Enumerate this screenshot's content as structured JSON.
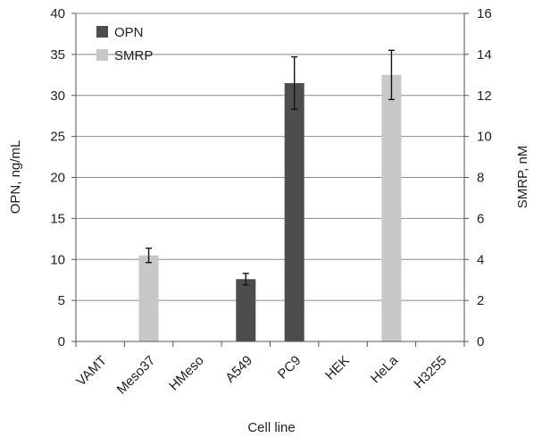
{
  "chart_data": {
    "type": "bar",
    "title": "",
    "xlabel": "Cell line",
    "ylabel": "OPN, ng/mL",
    "y2label": "SMRP, nM",
    "categories": [
      "VAMT",
      "Meso37",
      "HMeso",
      "A549",
      "PC9",
      "HEK",
      "HeLa",
      "H3255"
    ],
    "ylim": [
      0,
      40
    ],
    "y2lim": [
      0,
      16
    ],
    "yticks": [
      "0",
      "5",
      "10",
      "15",
      "20",
      "25",
      "30",
      "35",
      "40"
    ],
    "y2ticks": [
      "0",
      "2",
      "4",
      "6",
      "8",
      "10",
      "12",
      "14",
      "16"
    ],
    "grid": true,
    "legend_position": "top-left",
    "series": [
      {
        "name": "OPN",
        "axis": "left",
        "color": "#4d4d4d",
        "values": [
          0,
          0,
          0,
          7.6,
          31.5,
          0,
          0,
          0
        ],
        "errors": [
          0,
          0,
          0,
          0.7,
          3.2,
          0,
          0,
          0
        ]
      },
      {
        "name": "SMRP",
        "axis": "right",
        "color": "#c8c8c8",
        "values": [
          0,
          4.2,
          0,
          0,
          0,
          0,
          13.0,
          0
        ],
        "errors": [
          0,
          0.35,
          0,
          0,
          0,
          0,
          1.2,
          0
        ]
      }
    ]
  }
}
